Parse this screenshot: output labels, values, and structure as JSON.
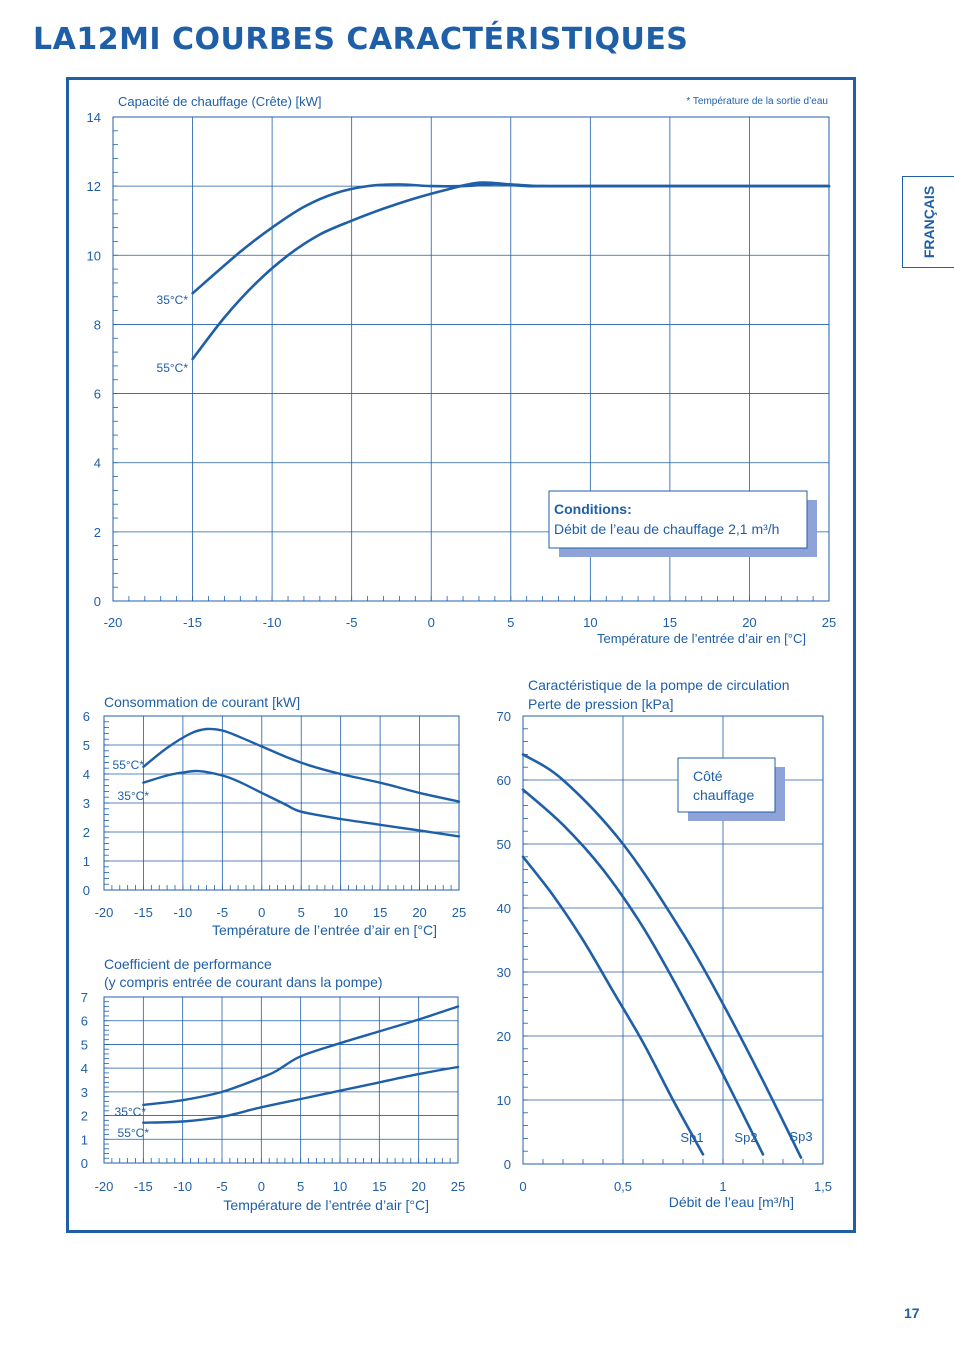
{
  "page": {
    "title": "LA12MI COURBES CARACTÉRISTIQUES",
    "language_tab": "FRANÇAIS",
    "page_number": "17",
    "accent_color": "#1f5fa8",
    "shadow_color": "#8fa3d9"
  },
  "chart_data": [
    {
      "type": "line",
      "title": "Capacité de chauffage (Crête) [kW]",
      "note": "* Température de la sortie d’eau",
      "xlabel": "Température de l’entrée d’air en [°C]",
      "ylabel": "",
      "xlim": [
        -20,
        25
      ],
      "ylim": [
        0,
        14
      ],
      "x_ticks": [
        "-20",
        "-15",
        "-10",
        "-5",
        "0",
        "5",
        "10",
        "15",
        "20",
        "25"
      ],
      "y_ticks": [
        "0",
        "2",
        "4",
        "6",
        "8",
        "10",
        "12",
        "14"
      ],
      "grid": true,
      "conditions_box": {
        "title": "Conditions:",
        "text": "Débit de l’eau de chauffage   2,1 m³/h"
      },
      "series": [
        {
          "name": "35°C*",
          "x": [
            -15,
            -12,
            -10,
            -8,
            -6,
            -4,
            -2,
            0,
            2,
            4,
            6,
            7,
            10,
            15,
            20,
            25
          ],
          "y": [
            8.9,
            10.1,
            10.8,
            11.4,
            11.8,
            12.0,
            12.05,
            12.0,
            12.0,
            12.05,
            12.0,
            12.0,
            12.0,
            12.0,
            12.0,
            12.0
          ]
        },
        {
          "name": "55°C*",
          "x": [
            -15,
            -13,
            -11,
            -9,
            -7,
            -5,
            -3,
            -1,
            1,
            3,
            5,
            7,
            10,
            15,
            20,
            25
          ],
          "y": [
            7.0,
            8.2,
            9.2,
            10.0,
            10.6,
            11.0,
            11.35,
            11.65,
            11.9,
            12.1,
            12.05,
            12.0,
            12.0,
            12.0,
            12.0,
            12.0
          ]
        }
      ]
    },
    {
      "type": "line",
      "title": "Consommation de courant [kW]",
      "xlabel": "Température de l’entrée d’air en [°C]",
      "ylabel": "",
      "xlim": [
        -20,
        25
      ],
      "ylim": [
        0,
        6
      ],
      "x_ticks": [
        "-20",
        "-15",
        "-10",
        "-5",
        "0",
        "5",
        "10",
        "15",
        "20",
        "25"
      ],
      "y_ticks": [
        "0",
        "1",
        "2",
        "3",
        "4",
        "5",
        "6"
      ],
      "grid": true,
      "series": [
        {
          "name": "55°C*",
          "x": [
            -15,
            -12,
            -9,
            -7,
            -5,
            -3,
            0,
            3,
            6,
            10,
            15,
            20,
            25
          ],
          "y": [
            4.25,
            4.9,
            5.4,
            5.55,
            5.5,
            5.3,
            4.95,
            4.6,
            4.3,
            4.0,
            3.7,
            3.35,
            3.05
          ]
        },
        {
          "name": "35°C*",
          "x": [
            -15,
            -12,
            -10,
            -8,
            -5,
            -3,
            0,
            3,
            5,
            10,
            15,
            20,
            25
          ],
          "y": [
            3.7,
            3.95,
            4.05,
            4.1,
            3.95,
            3.75,
            3.35,
            2.95,
            2.7,
            2.45,
            2.25,
            2.05,
            1.85
          ]
        }
      ]
    },
    {
      "type": "line",
      "title": "Coefficient de performance",
      "subtitle": "(y compris entrée de courant dans la pompe)",
      "xlabel": "Température de l’entrée d’air [°C]",
      "ylabel": "",
      "xlim": [
        -20,
        25
      ],
      "ylim": [
        0,
        7
      ],
      "x_ticks": [
        "-20",
        "-15",
        "-10",
        "-5",
        "0",
        "5",
        "10",
        "15",
        "20",
        "25"
      ],
      "y_ticks": [
        "0",
        "1",
        "2",
        "3",
        "4",
        "5",
        "6",
        "7"
      ],
      "grid": true,
      "series": [
        {
          "name": "35°C*",
          "x": [
            -15,
            -10,
            -5,
            0,
            2,
            5,
            10,
            15,
            20,
            25
          ],
          "y": [
            2.45,
            2.65,
            3.0,
            3.6,
            3.9,
            4.5,
            5.05,
            5.55,
            6.05,
            6.6
          ]
        },
        {
          "name": "55°C*",
          "x": [
            -15,
            -10,
            -5,
            0,
            5,
            10,
            15,
            20,
            25
          ],
          "y": [
            1.7,
            1.75,
            1.95,
            2.35,
            2.7,
            3.05,
            3.4,
            3.75,
            4.05
          ]
        }
      ]
    },
    {
      "type": "line",
      "title": "Caractéristique de la pompe de circulation",
      "subtitle": "Perte de pression [kPa]",
      "xlabel": "Débit de l’eau [m³/h]",
      "ylabel": "",
      "xlim": [
        0,
        1.5
      ],
      "ylim": [
        0,
        70
      ],
      "x_ticks": [
        "0",
        "0,5",
        "1",
        "1,5"
      ],
      "y_ticks": [
        "0",
        "10",
        "20",
        "30",
        "40",
        "50",
        "60",
        "70"
      ],
      "grid": true,
      "legend_box": [
        "Côté",
        "chauffage"
      ],
      "series": [
        {
          "name": "Sp1",
          "x": [
            0,
            0.15,
            0.3,
            0.45,
            0.6,
            0.75,
            0.9
          ],
          "y": [
            48,
            42,
            35,
            27,
            19,
            10,
            1.5
          ]
        },
        {
          "name": "Sp2",
          "x": [
            0,
            0.2,
            0.4,
            0.6,
            0.8,
            1.0,
            1.2
          ],
          "y": [
            58.5,
            53,
            46,
            37,
            26,
            14,
            1.5
          ]
        },
        {
          "name": "Sp3",
          "x": [
            0,
            0.2,
            0.5,
            0.8,
            1.0,
            1.2,
            1.39
          ],
          "y": [
            64,
            60,
            50,
            36,
            25,
            13,
            1
          ]
        }
      ]
    }
  ]
}
